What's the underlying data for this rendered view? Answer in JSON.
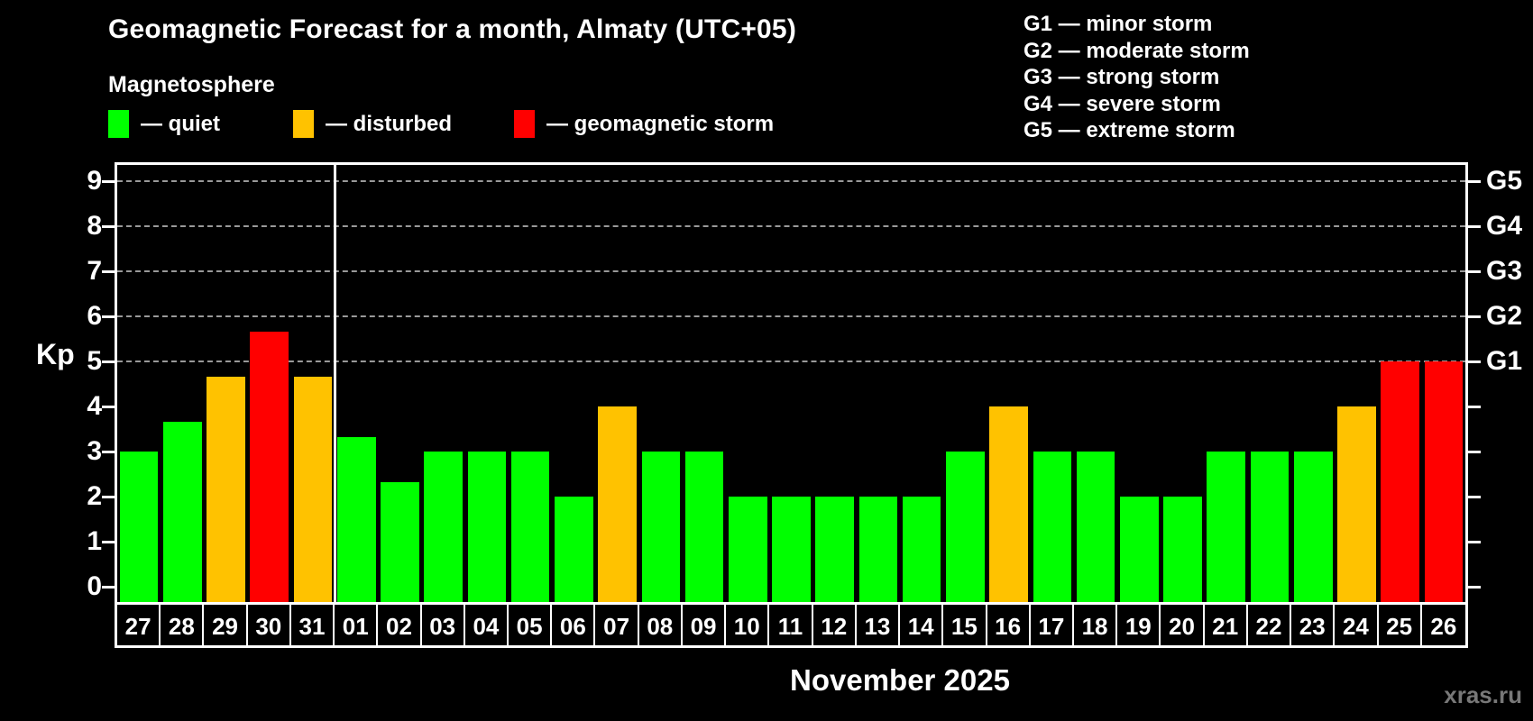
{
  "header": {
    "title": "Geomagnetic Forecast for a month, Almaty (UTC+05)",
    "subtitle": "Magnetosphere"
  },
  "legend": {
    "items": [
      {
        "key": "quiet",
        "label": "— quiet",
        "color": "#00ff00"
      },
      {
        "key": "disturbed",
        "label": "— disturbed",
        "color": "#ffc200"
      },
      {
        "key": "storm",
        "label": "— geomagnetic storm",
        "color": "#ff0000"
      }
    ]
  },
  "g_scale_legend": [
    "G1 — minor storm",
    "G2 — moderate storm",
    "G3 — strong storm",
    "G4 — severe storm",
    "G5 — extreme storm"
  ],
  "axes": {
    "y_label": "Kp",
    "y_ticks": [
      0,
      1,
      2,
      3,
      4,
      5,
      6,
      7,
      8,
      9
    ],
    "right_labels": [
      {
        "kp": 5,
        "label": "G1"
      },
      {
        "kp": 6,
        "label": "G2"
      },
      {
        "kp": 7,
        "label": "G3"
      },
      {
        "kp": 8,
        "label": "G4"
      },
      {
        "kp": 9,
        "label": "G5"
      }
    ],
    "x_label": "November 2025"
  },
  "watermark": "xras.ru",
  "colors": {
    "background": "#000000",
    "axis": "#ffffff",
    "gridline": "#999999",
    "quiet": "#00ff00",
    "disturbed": "#ffc200",
    "storm": "#ff0000",
    "watermark": "#787878"
  },
  "chart_data": {
    "type": "bar",
    "title": "Geomagnetic Forecast for a month, Almaty (UTC+05)",
    "subtitle": "Magnetosphere",
    "xlabel": "November 2025",
    "ylabel": "Kp",
    "ylim": [
      -0.35,
      9.4
    ],
    "grid": "dashed horizontal at Kp 5-9 (G1-G5)",
    "gridlines_at": [
      5,
      6,
      7,
      8,
      9
    ],
    "legend_position": "top-left",
    "month_separator_after_index": 4,
    "categories": [
      "27",
      "28",
      "29",
      "30",
      "31",
      "01",
      "02",
      "03",
      "04",
      "05",
      "06",
      "07",
      "08",
      "09",
      "10",
      "11",
      "12",
      "13",
      "14",
      "15",
      "16",
      "17",
      "18",
      "19",
      "20",
      "21",
      "22",
      "23",
      "24",
      "25",
      "26"
    ],
    "values": [
      3.0,
      3.67,
      4.67,
      5.67,
      4.67,
      3.33,
      2.33,
      3.0,
      3.0,
      3.0,
      2.0,
      4.0,
      3.0,
      3.0,
      2.0,
      2.0,
      2.0,
      2.0,
      2.0,
      3.0,
      4.0,
      3.0,
      3.0,
      2.0,
      2.0,
      3.0,
      3.0,
      3.0,
      4.0,
      5.0,
      5.0
    ],
    "statuses": [
      "quiet",
      "quiet",
      "disturbed",
      "storm",
      "disturbed",
      "quiet",
      "quiet",
      "quiet",
      "quiet",
      "quiet",
      "quiet",
      "disturbed",
      "quiet",
      "quiet",
      "quiet",
      "quiet",
      "quiet",
      "quiet",
      "quiet",
      "quiet",
      "disturbed",
      "quiet",
      "quiet",
      "quiet",
      "quiet",
      "quiet",
      "quiet",
      "quiet",
      "disturbed",
      "storm",
      "storm"
    ]
  }
}
